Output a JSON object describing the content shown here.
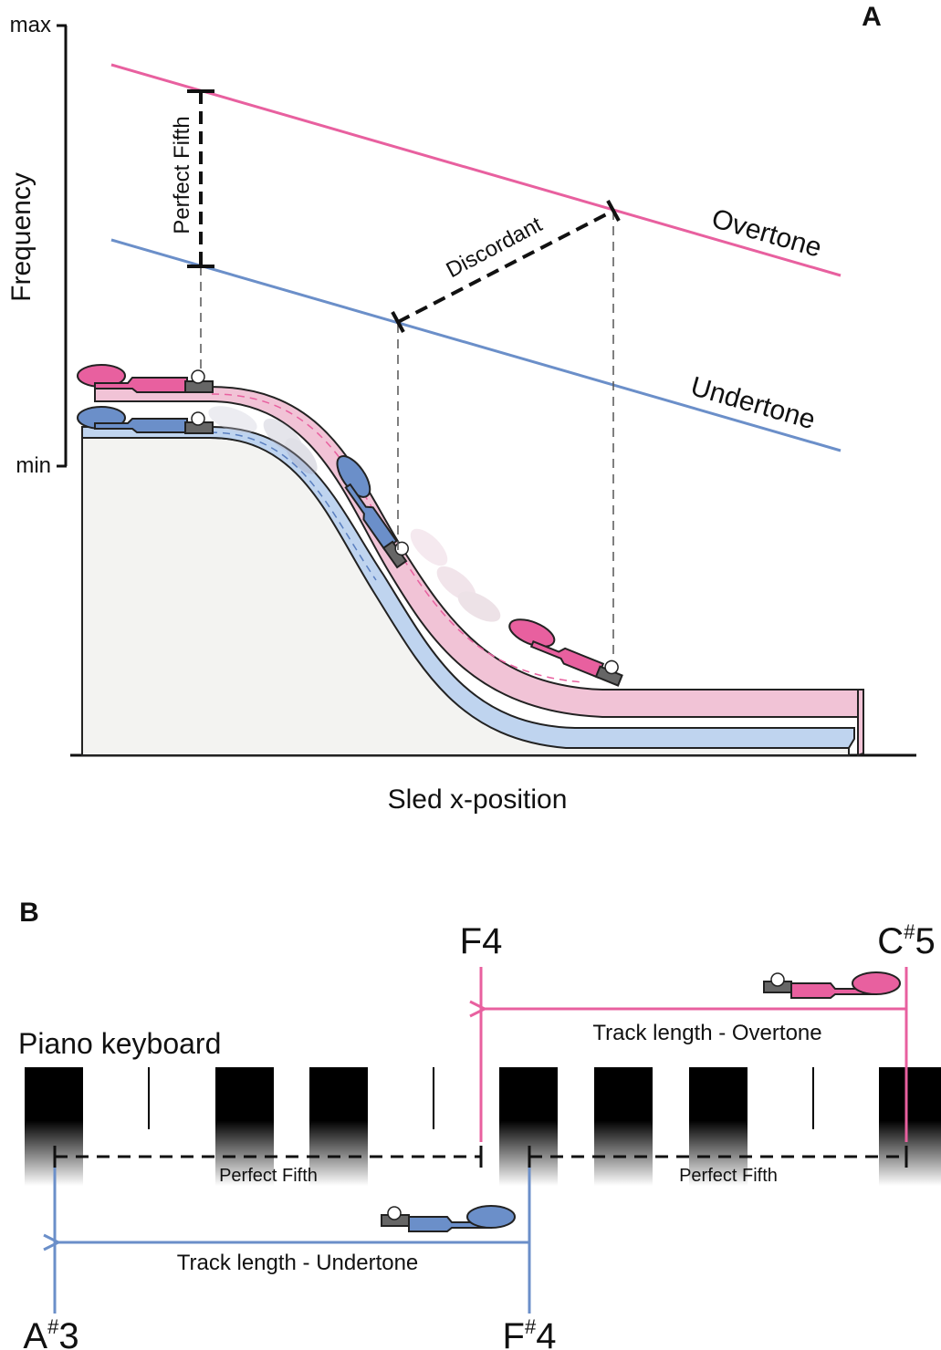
{
  "panel_a": {
    "letter": "A",
    "axis": {
      "y_label": "Frequency",
      "y_max": "max",
      "y_min": "min",
      "x_label": "Sled x-position"
    },
    "lines": {
      "overtone": "Overtone",
      "undertone": "Undertone"
    },
    "intervals": {
      "perfect_fifth": "Perfect Fifth",
      "discordant": "Discordant"
    }
  },
  "panel_b": {
    "letter": "B",
    "keyboard_label": "Piano keyboard",
    "notes": {
      "f4": "F4",
      "cs5_letter": "C",
      "cs5_sharp": "#",
      "cs5_octave": "5",
      "as3_letter": "A",
      "as3_sharp": "#",
      "as3_octave": "3",
      "fs4_letter": "F",
      "fs4_sharp": "#",
      "fs4_octave": "4"
    },
    "track_overtone": "Track length - Overtone",
    "track_undertone": "Track length - Undertone",
    "interval_left": "Perfect Fifth",
    "interval_right": "Perfect Fifth"
  },
  "colors": {
    "overtone": "#e8609f",
    "undertone": "#6b8fc9",
    "track_pink": "#f1c3d6",
    "track_blue": "#bfd4ef",
    "hill": "#f3f3f1"
  }
}
